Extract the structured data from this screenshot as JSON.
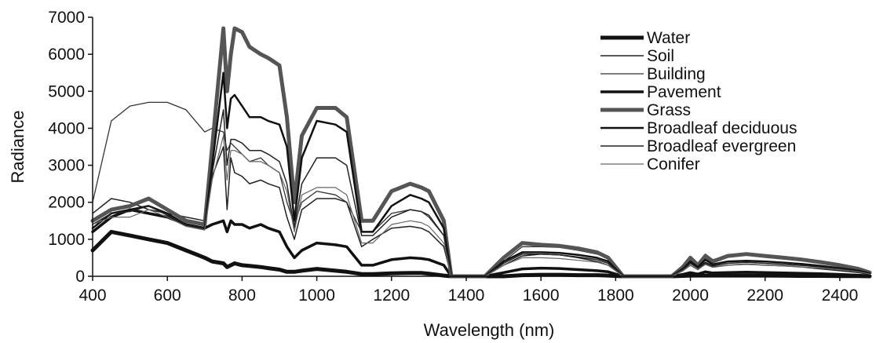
{
  "chart_data": {
    "type": "line",
    "xlabel": "Wavelength (nm)",
    "ylabel": "Radiance",
    "xlim": [
      400,
      2480
    ],
    "ylim": [
      0,
      7000
    ],
    "x_ticks": [
      400,
      600,
      800,
      1000,
      1200,
      1400,
      1600,
      1800,
      2000,
      2200,
      2400
    ],
    "y_ticks": [
      0,
      1000,
      2000,
      3000,
      4000,
      5000,
      6000,
      7000
    ],
    "grid": false,
    "legend_position": "top-right",
    "x": [
      400,
      450,
      500,
      550,
      600,
      650,
      700,
      720,
      750,
      760,
      770,
      780,
      800,
      820,
      850,
      870,
      900,
      920,
      940,
      960,
      1000,
      1050,
      1080,
      1120,
      1150,
      1200,
      1250,
      1280,
      1300,
      1340,
      1360,
      1400,
      1450,
      1500,
      1550,
      1600,
      1650,
      1700,
      1750,
      1780,
      1820,
      1900,
      1950,
      1980,
      2000,
      2020,
      2040,
      2060,
      2100,
      2150,
      2200,
      2250,
      2300,
      2350,
      2400,
      2450,
      2480
    ],
    "series": [
      {
        "name": "Water",
        "color": "#111111",
        "width": 5,
        "values": [
          700,
          1200,
          1100,
          1000,
          900,
          700,
          500,
          400,
          350,
          250,
          300,
          350,
          300,
          280,
          250,
          220,
          180,
          120,
          120,
          150,
          200,
          150,
          120,
          60,
          60,
          80,
          90,
          90,
          70,
          20,
          0,
          0,
          0,
          0,
          30,
          40,
          40,
          30,
          30,
          20,
          0,
          0,
          0,
          10,
          20,
          20,
          20,
          20,
          20,
          20,
          20,
          15,
          10,
          10,
          5,
          5,
          0
        ]
      },
      {
        "name": "Soil",
        "color": "#222222",
        "width": 1.5,
        "values": [
          1700,
          2100,
          2000,
          1800,
          1700,
          1600,
          1500,
          2700,
          3500,
          1800,
          3200,
          2800,
          2700,
          2500,
          2600,
          2500,
          2400,
          1600,
          1000,
          1800,
          2100,
          2100,
          2000,
          800,
          1000,
          1300,
          1350,
          1300,
          1200,
          800,
          0,
          0,
          0,
          300,
          550,
          600,
          580,
          500,
          400,
          300,
          0,
          0,
          0,
          150,
          300,
          180,
          350,
          250,
          300,
          330,
          300,
          280,
          250,
          200,
          150,
          100,
          50
        ]
      },
      {
        "name": "Building",
        "color": "#333333",
        "width": 1.3,
        "values": [
          2000,
          4200,
          4600,
          4700,
          4700,
          4500,
          3900,
          4000,
          3900,
          3400,
          3600,
          3500,
          3300,
          3100,
          3200,
          3000,
          2800,
          2000,
          1400,
          2000,
          2300,
          2200,
          2000,
          1200,
          1200,
          1700,
          1800,
          1750,
          1600,
          1100,
          0,
          0,
          0,
          400,
          800,
          800,
          780,
          700,
          600,
          500,
          0,
          0,
          0,
          300,
          500,
          350,
          600,
          450,
          550,
          600,
          550,
          500,
          450,
          380,
          300,
          200,
          100
        ]
      },
      {
        "name": "Pavement",
        "color": "#111111",
        "width": 3.5,
        "values": [
          1200,
          1600,
          1800,
          1700,
          1600,
          1400,
          1300,
          1400,
          1500,
          1200,
          1500,
          1400,
          1400,
          1300,
          1400,
          1300,
          1200,
          800,
          500,
          700,
          900,
          850,
          800,
          300,
          300,
          450,
          500,
          480,
          450,
          300,
          0,
          0,
          0,
          100,
          200,
          220,
          210,
          180,
          150,
          120,
          0,
          0,
          0,
          50,
          100,
          60,
          120,
          90,
          100,
          110,
          100,
          90,
          80,
          70,
          50,
          30,
          10
        ]
      },
      {
        "name": "Grass",
        "color": "#555555",
        "width": 5,
        "values": [
          1500,
          1800,
          1900,
          2100,
          1800,
          1500,
          1400,
          3500,
          6700,
          5000,
          6000,
          6700,
          6600,
          6200,
          6000,
          5900,
          5700,
          4300,
          2000,
          3800,
          4550,
          4550,
          4300,
          1500,
          1500,
          2300,
          2500,
          2400,
          2300,
          1500,
          0,
          0,
          0,
          500,
          900,
          850,
          820,
          750,
          650,
          500,
          0,
          0,
          0,
          250,
          500,
          300,
          550,
          400,
          550,
          600,
          550,
          500,
          450,
          380,
          300,
          200,
          100
        ]
      },
      {
        "name": "Broadleaf deciduous",
        "color": "#111111",
        "width": 2.5,
        "values": [
          1300,
          1700,
          1800,
          1900,
          1700,
          1400,
          1300,
          3000,
          5500,
          4000,
          4800,
          4900,
          4600,
          4300,
          4300,
          4200,
          4100,
          3500,
          1500,
          3200,
          4200,
          4100,
          3900,
          1200,
          1200,
          1900,
          2200,
          2100,
          2000,
          1300,
          0,
          0,
          0,
          400,
          650,
          650,
          630,
          580,
          500,
          400,
          0,
          0,
          0,
          200,
          400,
          250,
          450,
          320,
          400,
          420,
          400,
          370,
          330,
          280,
          220,
          150,
          80
        ]
      },
      {
        "name": "Broadleaf evergreen",
        "color": "#222222",
        "width": 1.5,
        "values": [
          1400,
          1700,
          1750,
          1900,
          1650,
          1400,
          1300,
          2800,
          4500,
          3000,
          3700,
          3700,
          3600,
          3400,
          3400,
          3300,
          3100,
          2500,
          1300,
          2500,
          3200,
          3200,
          3000,
          1100,
          1100,
          1600,
          1800,
          1750,
          1650,
          1100,
          0,
          0,
          0,
          350,
          600,
          600,
          580,
          520,
          450,
          350,
          0,
          0,
          0,
          180,
          350,
          220,
          380,
          280,
          350,
          380,
          350,
          320,
          290,
          250,
          200,
          130,
          70
        ]
      },
      {
        "name": "Conifer",
        "color": "#666666",
        "width": 1.2,
        "values": [
          1400,
          1600,
          1600,
          1800,
          1600,
          1350,
          1250,
          2600,
          3800,
          2600,
          3400,
          3400,
          3300,
          3100,
          3100,
          3000,
          2800,
          2300,
          1200,
          2200,
          2400,
          2400,
          2200,
          900,
          900,
          1400,
          1500,
          1450,
          1350,
          900,
          0,
          0,
          0,
          300,
          500,
          500,
          480,
          430,
          380,
          300,
          0,
          0,
          0,
          150,
          300,
          180,
          320,
          240,
          300,
          320,
          300,
          280,
          250,
          220,
          180,
          120,
          60
        ]
      }
    ]
  }
}
